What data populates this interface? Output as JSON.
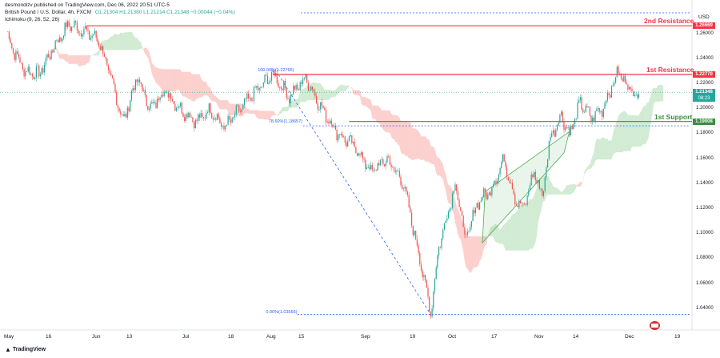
{
  "header": {
    "publisher_line": "desmondizv published on TradingView.com, Dec 06, 2022 20:51 UTC-5",
    "symbol": "British Pound / U.S. Dollar, 4h, FXCM",
    "ohlc": "O1.21304 H1.21380 L1.21214 C1.21348 −0.00044 (−0.04%)",
    "indicator": "Ichimoku (9, 26, 52, 26)"
  },
  "currency_label": "USD",
  "levels": {
    "second_resistance": {
      "label": "2nd Resistance",
      "price_tag": "1.26669",
      "value": 1.26669,
      "color": "#f23645"
    },
    "first_resistance": {
      "label": "1st Resistance",
      "price_tag": "1.22770",
      "value": 1.2277,
      "color": "#f23645"
    },
    "first_support": {
      "label": "1st Support",
      "price_tag": "1.19008",
      "value": 1.19008,
      "color": "#388e3c"
    },
    "current": {
      "price_tag": "1.21348",
      "countdown": "08:23",
      "value": 1.21348,
      "color": "#26a69a"
    }
  },
  "fibonacci": {
    "level_100": "100.00%(1.22766)",
    "level_786": "78.60%(1.18657)",
    "level_0": "0.00%(1.03565)",
    "color": "#2962ff"
  },
  "y_ticks": [
    "1.26000",
    "1.24000",
    "1.22000",
    "1.20000",
    "1.18000",
    "1.16000",
    "1.14000",
    "1.12000",
    "1.10000",
    "1.08000",
    "1.06000",
    "1.04000"
  ],
  "x_ticks": [
    "May",
    "16",
    "Jun",
    "13",
    "Jul",
    "18",
    "Aug",
    "15",
    "Sep",
    "19",
    "Oct",
    "17",
    "Nov",
    "14",
    "Dec",
    "19"
  ],
  "footer": {
    "logo_text": "TradingView"
  },
  "chart_data": {
    "type": "candlestick",
    "ylim": [
      1.028,
      1.284
    ],
    "keypoints": [
      [
        0,
        1.262
      ],
      [
        6,
        1.245
      ],
      [
        14,
        1.23
      ],
      [
        24,
        1.228
      ],
      [
        36,
        1.252
      ],
      [
        46,
        1.268
      ],
      [
        58,
        1.262
      ],
      [
        68,
        1.255
      ],
      [
        78,
        1.22
      ],
      [
        86,
        1.19
      ],
      [
        96,
        1.225
      ],
      [
        106,
        1.2
      ],
      [
        116,
        1.215
      ],
      [
        128,
        1.2
      ],
      [
        140,
        1.19
      ],
      [
        150,
        1.2
      ],
      [
        160,
        1.185
      ],
      [
        172,
        1.2
      ],
      [
        184,
        1.215
      ],
      [
        196,
        1.228
      ],
      [
        208,
        1.21
      ],
      [
        220,
        1.225
      ],
      [
        232,
        1.2
      ],
      [
        244,
        1.18
      ],
      [
        256,
        1.17
      ],
      [
        268,
        1.15
      ],
      [
        280,
        1.16
      ],
      [
        292,
        1.14
      ],
      [
        304,
        1.08
      ],
      [
        312,
        1.037
      ],
      [
        318,
        1.09
      ],
      [
        324,
        1.115
      ],
      [
        330,
        1.14
      ],
      [
        338,
        1.095
      ],
      [
        346,
        1.125
      ],
      [
        356,
        1.135
      ],
      [
        366,
        1.16
      ],
      [
        374,
        1.128
      ],
      [
        380,
        1.12
      ],
      [
        388,
        1.15
      ],
      [
        394,
        1.13
      ],
      [
        400,
        1.178
      ],
      [
        408,
        1.195
      ],
      [
        414,
        1.18
      ],
      [
        422,
        1.205
      ],
      [
        430,
        1.193
      ],
      [
        438,
        1.2
      ],
      [
        444,
        1.215
      ],
      [
        450,
        1.23
      ],
      [
        456,
        1.22
      ],
      [
        464,
        1.21
      ]
    ]
  }
}
